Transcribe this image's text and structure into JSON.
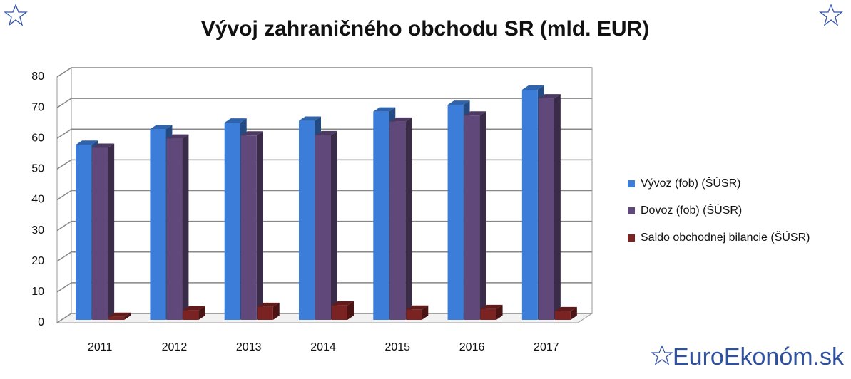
{
  "chart_data": {
    "type": "bar3d",
    "title": "Vývoj zahraničného obchodu SR (mld. EUR)",
    "categories": [
      "2011",
      "2012",
      "2013",
      "2014",
      "2015",
      "2016",
      "2017"
    ],
    "series": [
      {
        "name": "Vývoz (fob) (ŠÚSR)",
        "color": "#3b7dd8",
        "values": [
          57.0,
          62.1,
          64.2,
          64.8,
          67.8,
          70.0,
          74.9
        ]
      },
      {
        "name": "Dovoz (fob)  (ŠÚSR)",
        "color": "#60497a",
        "values": [
          56.0,
          59.0,
          60.0,
          60.1,
          64.5,
          66.5,
          72.1
        ]
      },
      {
        "name": "Saldo obchodnej bilancie (ŠÚSR)",
        "color": "#7b2222",
        "values": [
          1.0,
          3.1,
          4.2,
          4.7,
          3.3,
          3.5,
          2.8
        ]
      }
    ],
    "ylim": [
      0,
      80
    ],
    "yticks": [
      0,
      10,
      20,
      30,
      40,
      50,
      60,
      70,
      80
    ],
    "grid": true,
    "legend": "right"
  },
  "watermark": "EuroEkonóm.sk"
}
